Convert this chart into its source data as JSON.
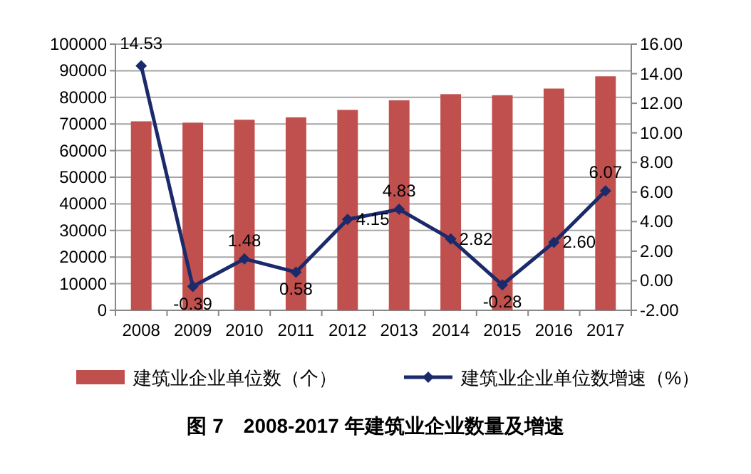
{
  "chart_data": {
    "type": "bar",
    "categories": [
      "2008",
      "2009",
      "2010",
      "2011",
      "2012",
      "2013",
      "2014",
      "2015",
      "2016",
      "2017"
    ],
    "series": [
      {
        "name": "建筑业企业单位数（个）",
        "color": "#c0504d",
        "values": [
          71000,
          70500,
          71600,
          72500,
          75300,
          78900,
          81200,
          80800,
          83300,
          87900
        ]
      },
      {
        "name": "建筑业企业单位数增速（%）",
        "type": "line",
        "axis": "y2",
        "color": "#1b2a6b",
        "marker": "diamond",
        "values": [
          14.53,
          -0.39,
          1.48,
          0.58,
          4.15,
          4.83,
          2.82,
          -0.28,
          2.6,
          6.07
        ],
        "value_labels": [
          "14.53",
          "-0.39",
          "1.48",
          "0.58",
          "4.15",
          "4.83",
          "2.82",
          "-0.28",
          "2.60",
          "6.07"
        ]
      }
    ],
    "ylim": [
      0,
      100000
    ],
    "yticks": [
      0,
      10000,
      20000,
      30000,
      40000,
      50000,
      60000,
      70000,
      80000,
      90000,
      100000
    ],
    "y2lim": [
      -2,
      16
    ],
    "y2ticks": [
      {
        "value": -2,
        "label": "-2.00"
      },
      {
        "value": 0,
        "label": "0.00"
      },
      {
        "value": 2,
        "label": "2.00"
      },
      {
        "value": 4,
        "label": "4.00"
      },
      {
        "value": 6,
        "label": "6.00"
      },
      {
        "value": 8,
        "label": "8.00"
      },
      {
        "value": 10,
        "label": "10.00"
      },
      {
        "value": 12,
        "label": "12.00"
      },
      {
        "value": 14,
        "label": "14.00"
      },
      {
        "value": 16,
        "label": "16.00"
      }
    ],
    "grid": "y",
    "legend": "bottom",
    "annotations": [
      "图 7　2008-2017 年建筑业企业数量及增速"
    ]
  }
}
